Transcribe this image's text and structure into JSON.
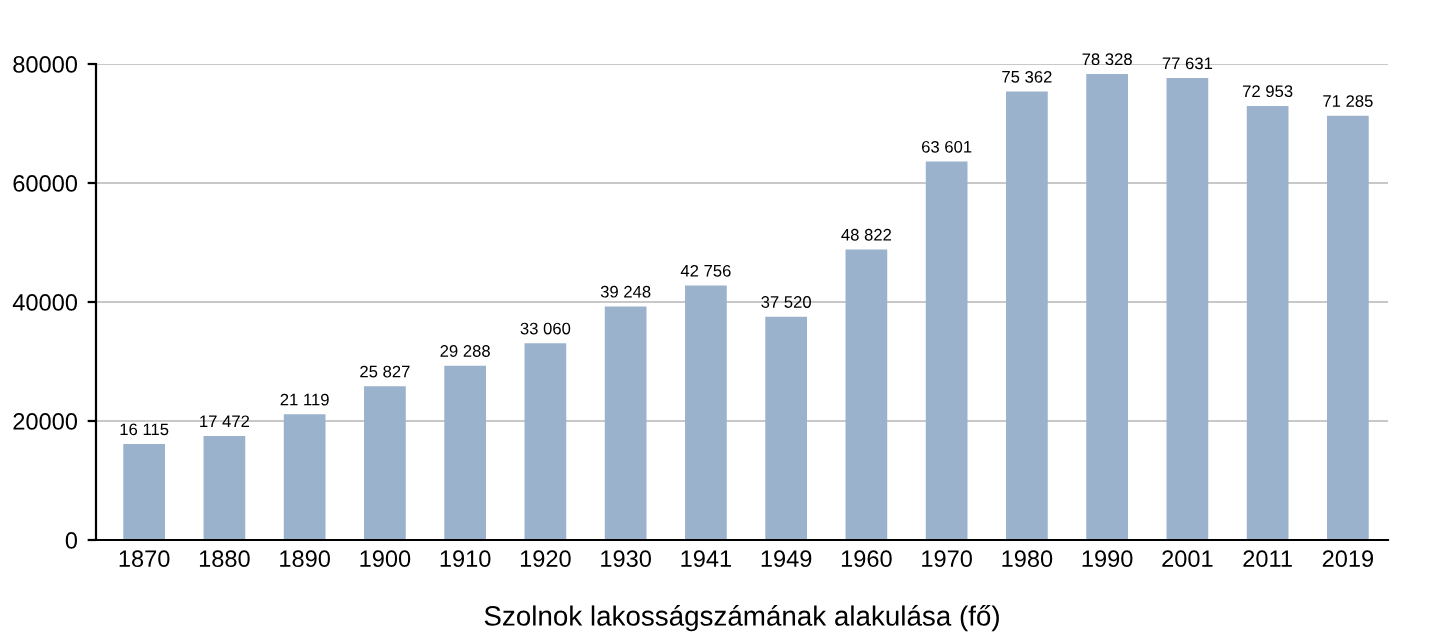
{
  "chart_data": {
    "type": "bar",
    "xlabel": "Szolnok lakosságszámának alakulása (fő)",
    "categories": [
      "1870",
      "1880",
      "1890",
      "1900",
      "1910",
      "1920",
      "1930",
      "1941",
      "1949",
      "1960",
      "1970",
      "1980",
      "1990",
      "2001",
      "2011",
      "2019"
    ],
    "values": [
      16115,
      17472,
      21119,
      25827,
      29288,
      33060,
      39248,
      42756,
      37520,
      48822,
      63601,
      75362,
      78328,
      77631,
      72953,
      71285
    ],
    "value_labels": [
      "16 115",
      "17 472",
      "21 119",
      "25 827",
      "29 288",
      "33 060",
      "39 248",
      "42 756",
      "37 520",
      "48 822",
      "63 601",
      "75 362",
      "78 328",
      "77 631",
      "72 953",
      "71 285"
    ],
    "color": "#9ab2cb",
    "ylim": [
      0,
      80000
    ],
    "yticks": [
      0,
      20000,
      40000,
      60000,
      80000
    ],
    "grid": "y",
    "legend": false
  }
}
